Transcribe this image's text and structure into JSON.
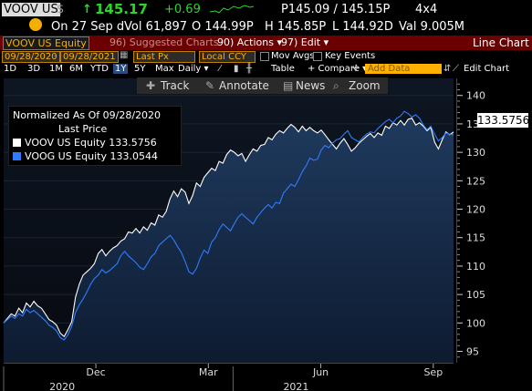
{
  "quote": {
    "ticker": "VOOV US",
    "currency": "$",
    "price": "145.17",
    "change": "+0.69",
    "bid_ask": "P145.09 / 145.15P",
    "size": "4x4",
    "date": "On 27 Sep d",
    "vol": "Vol 61,897",
    "open": "O 144.99P",
    "high": "H 145.85P",
    "low": "L 144.92D",
    "val": "Val 9.005M"
  },
  "secbar": {
    "security": "VOOV US Equity",
    "suggested": "96) Suggested Charts",
    "actions": "90) Actions ▾",
    "edit": "97) Edit ▾",
    "title": "Line Chart"
  },
  "options": {
    "start_date": "09/28/2020",
    "end_date": "09/28/2021",
    "field": "Last Px",
    "currency": "Local CCY",
    "mov_avgs": "Mov Avgs",
    "key_events": "Key Events"
  },
  "periods": {
    "items": [
      "1D",
      "3D",
      "1M",
      "6M",
      "YTD",
      "1Y",
      "5Y",
      "Max"
    ],
    "selected": "1Y",
    "frequency": "Daily ▾",
    "table": "Table",
    "compare": "+ Compare ▾",
    "add_data": "Add Data",
    "edit_chart": "Edit Chart"
  },
  "toolbar": {
    "track": "Track",
    "annotate": "Annotate",
    "news": "News",
    "zoom": "Zoom"
  },
  "legend": {
    "normalized": "Normalized As Of 09/28/2020",
    "field": "Last Price",
    "series": [
      {
        "name": "VOOV US Equity",
        "value": "133.5756",
        "color": "#ffffff"
      },
      {
        "name": "VOOG US Equity",
        "value": "133.0544",
        "color": "#2f7cff"
      }
    ]
  },
  "last_value_badge": "133.5756",
  "chart_data": {
    "type": "line",
    "ylim": [
      93,
      143
    ],
    "yticks": [
      95,
      100,
      105,
      110,
      115,
      120,
      125,
      130,
      135,
      140
    ],
    "month_labels": [
      "Dec",
      "Mar",
      "Jun",
      "Sep"
    ],
    "year_labels": [
      "2020",
      "2021"
    ],
    "series": [
      {
        "name": "VOOV US Equity",
        "color": "#ffffff",
        "values": [
          100,
          100.8,
          101.6,
          101.2,
          102.6,
          101.8,
          103.5,
          102.8,
          103.8,
          103.0,
          102.6,
          101.6,
          100.6,
          100.2,
          99.6,
          98.2,
          97.6,
          98.8,
          100.2,
          104.5,
          106.8,
          108.4,
          109.0,
          109.6,
          110.4,
          112.2,
          112.9,
          111.8,
          112.6,
          113.2,
          113.6,
          114.4,
          114.8,
          116.0,
          115.8,
          116.6,
          115.8,
          116.9,
          116.3,
          117.6,
          117.2,
          119.0,
          118.6,
          119.6,
          121.8,
          123.2,
          122.2,
          123.6,
          123.0,
          121.0,
          122.4,
          124.6,
          124.0,
          125.6,
          126.4,
          127.2,
          126.8,
          128.4,
          128.1,
          129.6,
          130.4,
          130.0,
          129.4,
          129.8,
          128.4,
          129.6,
          130.6,
          130.2,
          131.2,
          131.4,
          132.6,
          132.2,
          133.2,
          133.8,
          133.4,
          134.2,
          134.9,
          134.4,
          133.6,
          134.6,
          133.8,
          134.4,
          133.8,
          133.4,
          133.9,
          133.1,
          132.2,
          131.4,
          130.6,
          131.6,
          132.4,
          131.4,
          130.2,
          130.8,
          131.6,
          132.2,
          132.8,
          133.3,
          132.6,
          133.4,
          133.0,
          134.6,
          134.2,
          135.2,
          134.8,
          135.6,
          134.8,
          135.8,
          136.0,
          134.8,
          135.2,
          134.6,
          133.8,
          134.4,
          131.8,
          130.6,
          132.2,
          133.6,
          133.1,
          133.5756
        ]
      },
      {
        "name": "VOOG US Equity",
        "color": "#2f7cff",
        "values": [
          100,
          100.6,
          101.2,
          100.8,
          101.6,
          101.2,
          102.4,
          101.8,
          102.2,
          101.6,
          101.0,
          100.4,
          99.6,
          99.2,
          98.6,
          97.4,
          97.0,
          97.9,
          99.4,
          101.8,
          103.2,
          104.2,
          105.4,
          106.8,
          107.8,
          108.4,
          109.4,
          108.8,
          109.2,
          109.8,
          110.4,
          111.8,
          112.6,
          111.8,
          111.2,
          110.6,
          109.8,
          109.4,
          110.4,
          111.6,
          112.2,
          113.6,
          114.2,
          114.8,
          115.4,
          114.6,
          113.4,
          112.4,
          110.8,
          109.0,
          108.6,
          109.6,
          111.4,
          112.8,
          112.2,
          114.2,
          115.0,
          116.4,
          117.4,
          116.8,
          116.2,
          117.4,
          118.6,
          119.2,
          118.6,
          118.0,
          117.4,
          118.6,
          119.4,
          120.2,
          120.8,
          120.2,
          121.2,
          121.0,
          122.8,
          123.6,
          124.4,
          124.0,
          125.2,
          126.6,
          127.6,
          129.0,
          128.6,
          128.8,
          130.4,
          131.2,
          130.8,
          131.6,
          132.2,
          132.4,
          133.2,
          133.8,
          132.6,
          132.2,
          131.8,
          132.6,
          133.2,
          133.6,
          133.4,
          134.2,
          134.8,
          135.4,
          135.8,
          135.2,
          136.0,
          136.4,
          137.2,
          136.8,
          136.2,
          136.6,
          136.0,
          134.8,
          134.0,
          134.6,
          133.2,
          132.0,
          132.6,
          133.4,
          133.2,
          133.0544
        ]
      }
    ]
  }
}
